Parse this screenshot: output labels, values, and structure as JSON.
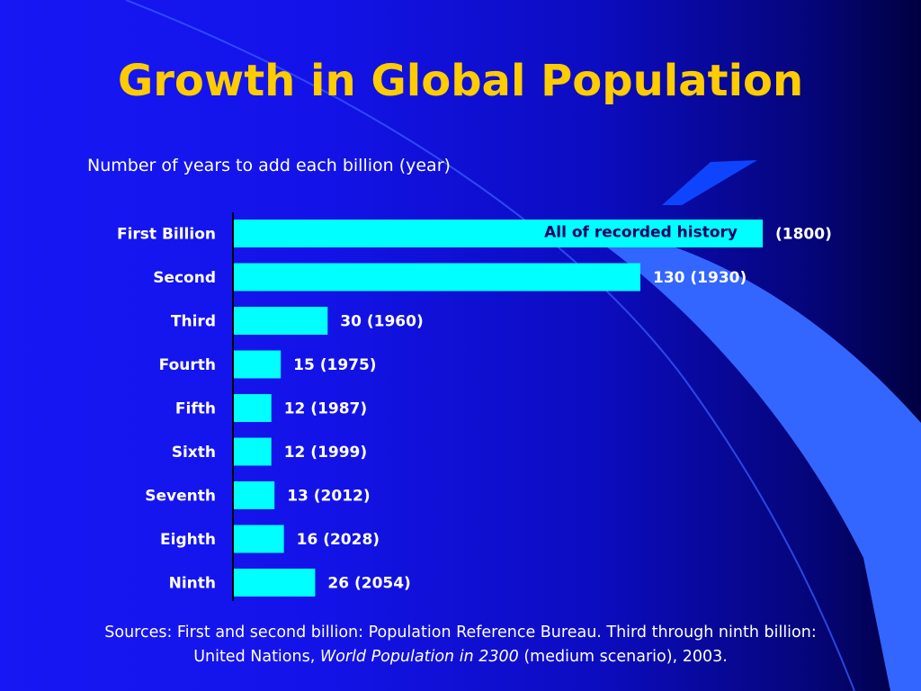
{
  "title": "Growth in Global Population",
  "subtitle": "Number of years to add each billion (year)",
  "sources": {
    "part1": "Sources: First and second billion: Population Reference Bureau. Third through ninth billion:",
    "part2": "United Nations,",
    "italic": "World Population in 2300",
    "part3": "(medium scenario), 2003."
  },
  "colors": {
    "title": "#ffcc00",
    "bar": "#00ffff",
    "bar_text": "#000066",
    "label_text": "#ffffff",
    "accent": "#3366ff"
  },
  "chart_data": {
    "type": "bar",
    "orientation": "horizontal",
    "categories": [
      "First Billion",
      "Second",
      "Third",
      "Fourth",
      "Fifth",
      "Sixth",
      "Seventh",
      "Eighth",
      "Ninth"
    ],
    "values": [
      null,
      130,
      30,
      15,
      12,
      12,
      13,
      16,
      26
    ],
    "inside_labels": [
      "All of recorded history",
      "",
      "",
      "",
      "",
      "",
      "",
      "",
      ""
    ],
    "data_labels": [
      "(1800)",
      "130 (1930)",
      "30 (1960)",
      "15 (1975)",
      "12 (1987)",
      "12 (1999)",
      "13 (2012)",
      "16 (2028)",
      "26 (2054)"
    ],
    "grid": false,
    "legend": "none"
  }
}
